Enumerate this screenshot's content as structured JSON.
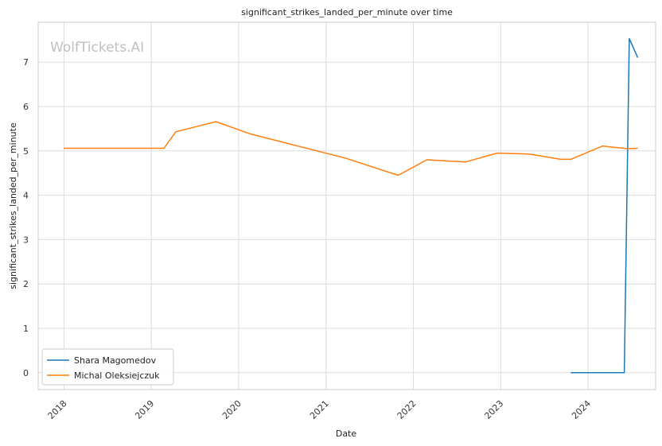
{
  "watermark": "WolfTickets.AI",
  "chart_data": {
    "type": "line",
    "title": "significant_strikes_landed_per_minute over time",
    "xlabel": "Date",
    "ylabel": "significant_strikes_landed_per_minute",
    "x_tick_labels": [
      "2018",
      "2019",
      "2020",
      "2021",
      "2022",
      "2023",
      "2024"
    ],
    "y_ticks": [
      0,
      1,
      2,
      3,
      4,
      5,
      6,
      7
    ],
    "xlim": [
      "2017-09-15",
      "2024-10-10"
    ],
    "ylim": [
      -0.38,
      7.9
    ],
    "grid": true,
    "legend_position": "lower-left",
    "series": [
      {
        "name": "Shara Magomedov",
        "color": "#1f77b4",
        "x": [
          "2023-10-21",
          "2024-06-01",
          "2024-06-22",
          "2024-07-27"
        ],
        "y": [
          0.0,
          0.0,
          7.53,
          7.1
        ]
      },
      {
        "name": "Michal Oleksiejczuk",
        "color": "#ff7f0e",
        "x": [
          "2017-12-30",
          "2019-02-23",
          "2019-04-13",
          "2019-09-28",
          "2020-02-15",
          "2021-03-20",
          "2021-10-30",
          "2022-02-26",
          "2022-08-06",
          "2022-12-17",
          "2023-04-29",
          "2023-09-09",
          "2023-10-21",
          "2024-03-02",
          "2024-06-15",
          "2024-07-27"
        ],
        "y": [
          5.06,
          5.06,
          5.43,
          5.66,
          5.39,
          4.84,
          4.45,
          4.8,
          4.75,
          4.95,
          4.93,
          4.81,
          4.81,
          5.11,
          5.05,
          5.06
        ]
      }
    ]
  }
}
